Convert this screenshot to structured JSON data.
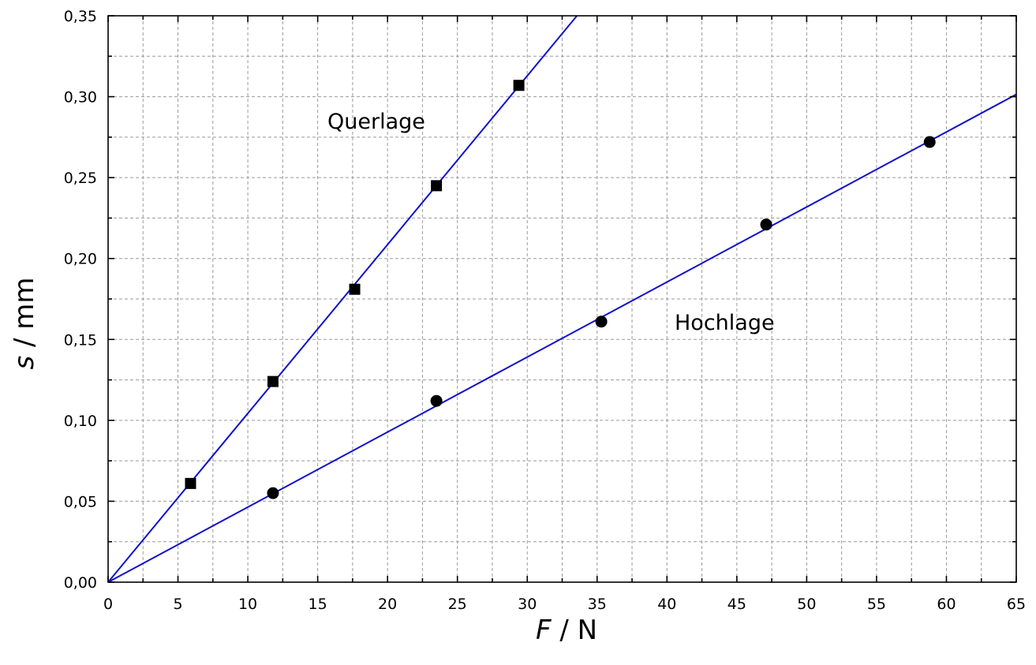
{
  "chart_data": {
    "type": "scatter",
    "xlabel_var": "F",
    "xlabel_unit": " / N",
    "ylabel_var": "s",
    "ylabel_unit": " / mm",
    "xlim": [
      0,
      65
    ],
    "ylim": [
      0,
      0.35
    ],
    "x_ticks": [
      "0",
      "5",
      "10",
      "15",
      "20",
      "25",
      "30",
      "35",
      "40",
      "45",
      "50",
      "55",
      "60",
      "65"
    ],
    "y_ticks": [
      "0,00",
      "0,05",
      "0,10",
      "0,15",
      "0,20",
      "0,25",
      "0,30",
      "0,35"
    ],
    "grid": true,
    "series": [
      {
        "name": "Querlage",
        "marker": "square",
        "x": [
          5.9,
          11.8,
          17.65,
          23.5,
          29.4
        ],
        "y": [
          0.061,
          0.124,
          0.181,
          0.245,
          0.307
        ],
        "fit_slope": 0.01043
      },
      {
        "name": "Hochlage",
        "marker": "circle",
        "x": [
          11.8,
          23.5,
          35.3,
          47.1,
          58.8
        ],
        "y": [
          0.055,
          0.112,
          0.161,
          0.221,
          0.272
        ],
        "fit_slope": 0.004637
      }
    ],
    "colors": {
      "fit_line": "#1010d0",
      "marker": "#000000"
    }
  }
}
